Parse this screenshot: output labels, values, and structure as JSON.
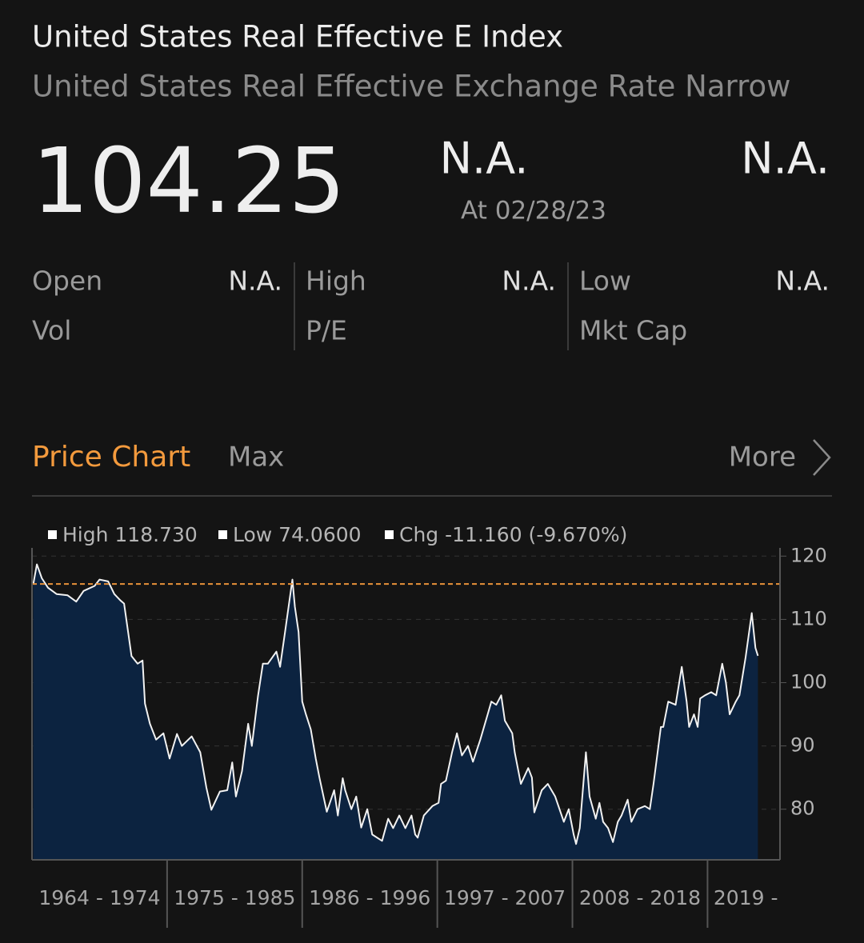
{
  "header": {
    "title": "United States Real Effective E Index",
    "subtitle": "United States Real Effective Exchange Rate Narrow",
    "price": "104.25",
    "change": "N.A.",
    "change_percent": "N.A.",
    "date": "At 02/28/23"
  },
  "stats": [
    {
      "label": "Open",
      "value": "N.A."
    },
    {
      "label": "High",
      "value": "N.A."
    },
    {
      "label": "Low",
      "value": "N.A."
    },
    {
      "label": "Vol"
    },
    {
      "label": "P/E"
    },
    {
      "label": "Mkt Cap"
    }
  ],
  "tabs": {
    "active": "Price Chart",
    "range": "Max",
    "more": "More"
  },
  "chart_data": {
    "type": "area",
    "legend": [
      "High 118.730",
      "Low 74.0600",
      "Chg -11.160 (-9.670%)"
    ],
    "line_color": "#f2f2f2",
    "fill_color": "#0c2340",
    "reference_line": 115.6,
    "reference_color": "#e8913a",
    "x": [
      1964.1,
      1964.4,
      1964.8,
      1965.3,
      1966.0,
      1966.9,
      1967.6,
      1968.2,
      1969.1,
      1969.5,
      1970.2,
      1970.7,
      1971.2,
      1971.5,
      1972.1,
      1972.6,
      1973.0,
      1973.2,
      1973.6,
      1974.1,
      1974.7,
      1975.2,
      1975.8,
      1976.2,
      1977.0,
      1977.7,
      1978.2,
      1978.6,
      1979.3,
      1979.9,
      1980.3,
      1980.6,
      1981.1,
      1981.6,
      1981.9,
      1982.4,
      1982.8,
      1983.2,
      1983.9,
      1984.2,
      1984.6,
      1985.2,
      1985.4,
      1985.7,
      1986.0,
      1986.3,
      1986.7,
      1987.1,
      1987.4,
      1988.0,
      1988.6,
      1988.9,
      1989.3,
      1989.5,
      1990.0,
      1990.4,
      1990.8,
      1991.3,
      1991.7,
      1992.5,
      1993.0,
      1993.4,
      1993.9,
      1994.4,
      1994.9,
      1995.2,
      1995.4,
      1995.9,
      1996.6,
      1997.1,
      1997.3,
      1997.7,
      1998.2,
      1998.6,
      1999.0,
      1999.5,
      1999.9,
      2000.5,
      2001.1,
      2001.4,
      2001.8,
      2002.2,
      2002.5,
      2003.1,
      2003.3,
      2003.8,
      2004.4,
      2004.7,
      2004.9,
      2005.5,
      2006.0,
      2006.6,
      2007.3,
      2007.7,
      2008.1,
      2008.3,
      2008.6,
      2009.1,
      2009.4,
      2009.9,
      2010.2,
      2010.5,
      2010.9,
      2011.3,
      2011.7,
      2012.0,
      2012.5,
      2012.8,
      2013.3,
      2013.9,
      2014.3,
      2014.6,
      2015.2,
      2015.4,
      2015.8,
      2016.4,
      2016.9,
      2017.3,
      2017.5,
      2017.9,
      2018.2,
      2018.4,
      2018.8,
      2019.3,
      2019.7,
      2020.2,
      2020.5,
      2020.8,
      2021.3,
      2021.6,
      2022.1,
      2022.6,
      2022.9,
      2023.1
    ],
    "values": [
      115.5,
      118.7,
      116.5,
      115,
      114,
      113.8,
      112.8,
      114.5,
      115.3,
      116.3,
      116,
      114,
      113,
      112.5,
      104.2,
      103,
      103.5,
      96.7,
      93.5,
      91,
      92,
      88,
      91.9,
      90,
      91.5,
      89,
      83.4,
      79.9,
      82.8,
      83,
      87.4,
      82,
      86,
      93.5,
      90,
      97.9,
      103,
      103,
      104.9,
      102.5,
      108,
      116.3,
      112,
      108,
      97,
      95,
      92.6,
      88,
      85,
      79.6,
      83,
      79,
      84.9,
      83,
      80,
      82,
      77.1,
      80,
      76,
      75,
      78.5,
      77,
      79,
      77,
      79,
      76,
      75.5,
      79,
      80.5,
      81,
      84,
      84.5,
      89,
      92,
      88.5,
      90,
      87.5,
      91,
      95,
      97,
      96.5,
      98,
      94,
      92,
      89,
      84,
      86.5,
      85,
      79.5,
      83,
      84,
      82,
      78,
      80,
      76,
      74.5,
      77,
      89,
      82,
      78.5,
      81,
      78,
      77,
      74.8,
      78,
      79,
      81.5,
      78,
      80,
      80.5,
      80,
      84,
      93,
      93,
      97,
      96.5,
      102.5,
      97,
      93,
      95,
      93,
      97.5,
      98,
      98.5,
      98,
      103,
      100,
      95,
      97,
      98,
      104,
      111,
      105.5,
      104.25
    ],
    "xlim": [
      1964,
      2024.9
    ],
    "xticks": [
      1964,
      1975,
      1986,
      1997,
      2008,
      2019
    ],
    "period_labels": [
      "1964 - 1974",
      "1975 - 1985",
      "1986 - 1996",
      "1997 - 2007",
      "2008 - 2018",
      "2019 -"
    ],
    "ylim": [
      72,
      121.3
    ],
    "yticks": [
      80,
      90,
      100,
      110,
      120
    ],
    "grid": true
  }
}
